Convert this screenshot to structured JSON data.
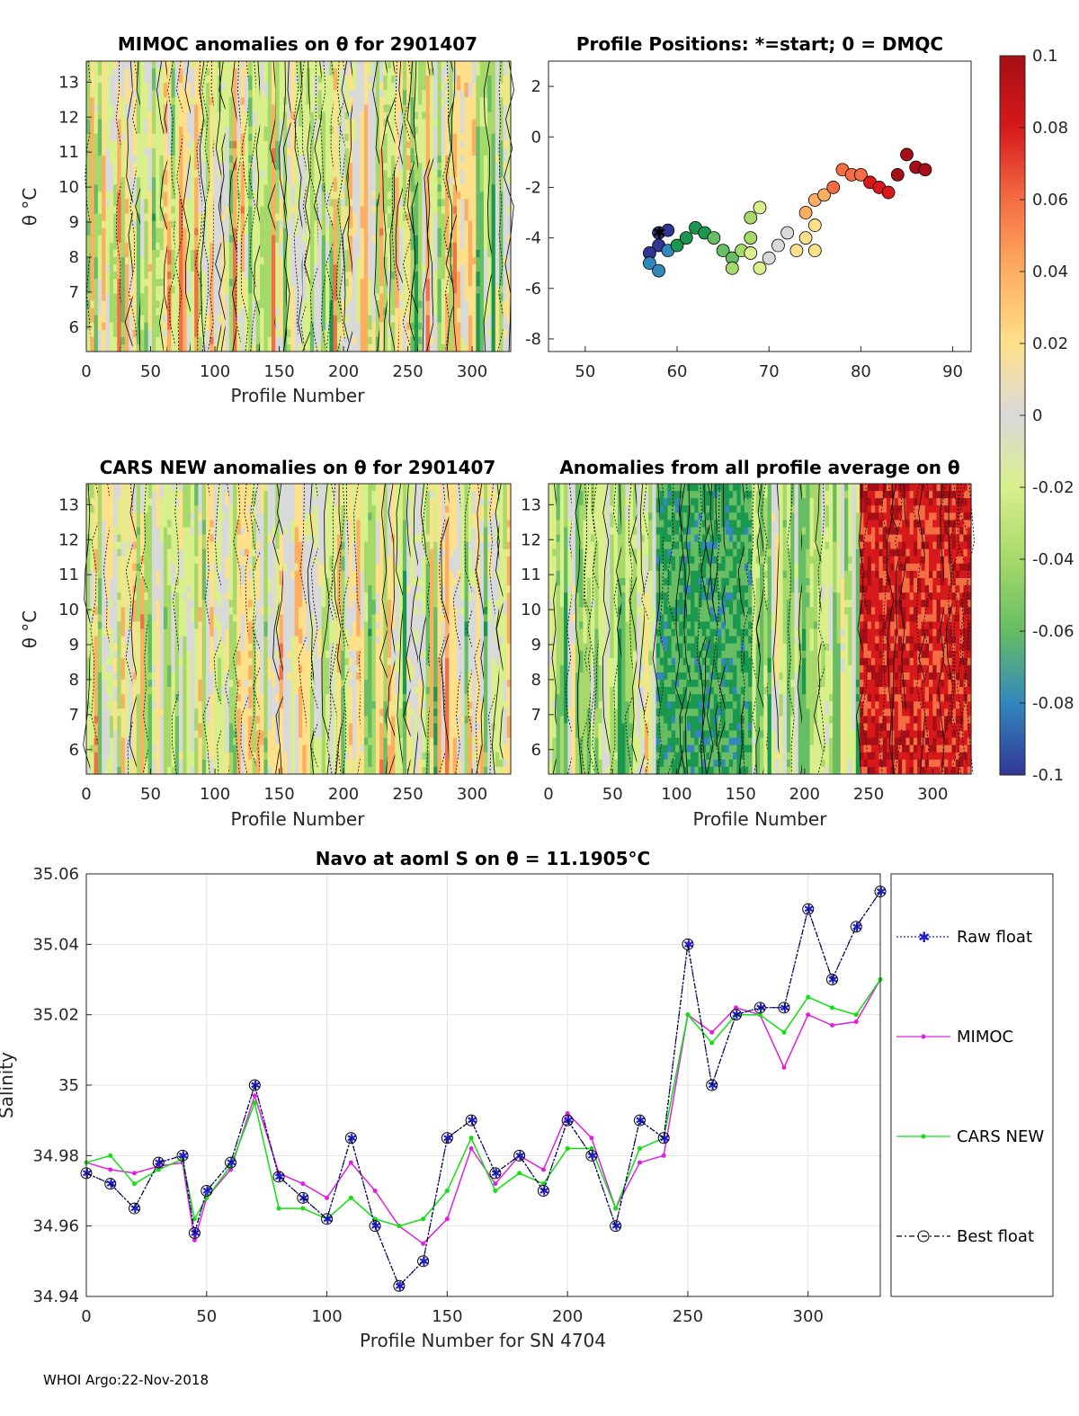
{
  "footer": "WHOI Argo:22-Nov-2018",
  "colorbar": {
    "labels": [
      "0.1",
      "0.08",
      "0.06",
      "0.04",
      "0.02",
      "0",
      "-0.02",
      "-0.04",
      "-0.06",
      "-0.08",
      "-0.1"
    ],
    "colors": [
      "#a50f15",
      "#d7191c",
      "#f46d43",
      "#fdae61",
      "#fee08b",
      "#d9d9d9",
      "#d9ef8b",
      "#a6d96a",
      "#66bd63",
      "#1a9850",
      "#3288bd",
      "#313695"
    ]
  },
  "chart_data": [
    {
      "type": "heatmap",
      "title": "MIMOC anomalies on θ  for 2901407",
      "xlabel": "Profile Number",
      "ylabel": "θ °C",
      "xticks": [
        "0",
        "50",
        "100",
        "150",
        "200",
        "250",
        "300"
      ],
      "yticks": [
        "6",
        "7",
        "8",
        "9",
        "10",
        "11",
        "12",
        "13"
      ],
      "xlim": [
        0,
        330
      ],
      "ylim": [
        5.3,
        13.6
      ]
    },
    {
      "type": "scatter",
      "title": "Profile Positions: *=start; 0 = DMQC",
      "xticks": [
        "50",
        "60",
        "70",
        "80",
        "90"
      ],
      "yticks": [
        "2",
        "0",
        "-2",
        "-4",
        "-6",
        "-8"
      ],
      "xlim": [
        46,
        92
      ],
      "ylim": [
        -8.5,
        3
      ],
      "track_points": [
        [
          58,
          -3.8
        ],
        [
          59,
          -3.7
        ],
        [
          58,
          -4.3
        ],
        [
          57,
          -4.6
        ],
        [
          57,
          -5
        ],
        [
          58,
          -5.3
        ],
        [
          59,
          -4.5
        ],
        [
          60,
          -4.3
        ],
        [
          61,
          -4
        ],
        [
          62,
          -3.6
        ],
        [
          63,
          -3.8
        ],
        [
          64,
          -4
        ],
        [
          65,
          -4.5
        ],
        [
          66,
          -4.8
        ],
        [
          66,
          -5.2
        ],
        [
          67,
          -4.5
        ],
        [
          68,
          -4
        ],
        [
          68,
          -3.2
        ],
        [
          69,
          -2.8
        ],
        [
          68,
          -4.6
        ],
        [
          69,
          -5.2
        ],
        [
          70,
          -4.8
        ],
        [
          71,
          -4.3
        ],
        [
          72,
          -3.8
        ],
        [
          73,
          -4.5
        ],
        [
          74,
          -4
        ],
        [
          75,
          -3.5
        ],
        [
          75,
          -4.5
        ],
        [
          74,
          -3
        ],
        [
          75,
          -2.5
        ],
        [
          76,
          -2.3
        ],
        [
          77,
          -2
        ],
        [
          78,
          -1.3
        ],
        [
          79,
          -1.5
        ],
        [
          80,
          -1.5
        ],
        [
          81,
          -1.8
        ],
        [
          82,
          -2
        ],
        [
          83,
          -2.2
        ],
        [
          84,
          -1.5
        ],
        [
          85,
          -0.7
        ],
        [
          86,
          -1.2
        ],
        [
          87,
          -1.3
        ]
      ]
    },
    {
      "type": "heatmap",
      "title": "CARS NEW anomalies on θ for 2901407",
      "xlabel": "Profile Number",
      "ylabel": "θ °C",
      "xticks": [
        "0",
        "50",
        "100",
        "150",
        "200",
        "250",
        "300"
      ],
      "yticks": [
        "6",
        "7",
        "8",
        "9",
        "10",
        "11",
        "12",
        "13"
      ],
      "xlim": [
        0,
        330
      ],
      "ylim": [
        5.3,
        13.6
      ]
    },
    {
      "type": "heatmap",
      "title": "Anomalies from all profile average on θ",
      "xlabel": "Profile Number",
      "xticks": [
        "0",
        "50",
        "100",
        "150",
        "200",
        "250",
        "300"
      ],
      "yticks": [
        "6",
        "7",
        "8",
        "9",
        "10",
        "11",
        "12",
        "13"
      ],
      "xlim": [
        0,
        330
      ],
      "ylim": [
        5.3,
        13.6
      ]
    },
    {
      "type": "line",
      "title": "Navo at aoml S on θ = 11.1905°C",
      "xlabel": "Profile Number for SN 4704",
      "ylabel": "Salinity",
      "xticks": [
        "0",
        "50",
        "100",
        "150",
        "200",
        "250",
        "300"
      ],
      "yticks": [
        "35.06",
        "35.04",
        "35.02",
        "35",
        "34.98",
        "34.96",
        "34.94"
      ],
      "xlim": [
        0,
        330
      ],
      "ylim": [
        34.94,
        35.06
      ],
      "x": [
        0,
        10,
        20,
        30,
        40,
        45,
        50,
        60,
        70,
        80,
        90,
        100,
        110,
        120,
        130,
        140,
        150,
        160,
        170,
        180,
        190,
        200,
        210,
        220,
        230,
        240,
        250,
        260,
        270,
        280,
        290,
        300,
        310,
        320,
        330
      ],
      "series": [
        {
          "name": "Raw float",
          "color": "#1f1fd0",
          "values": [
            34.975,
            34.972,
            34.965,
            34.978,
            34.98,
            34.958,
            34.97,
            34.978,
            35.0,
            34.974,
            34.968,
            34.962,
            34.985,
            34.96,
            34.943,
            34.95,
            34.985,
            34.99,
            34.975,
            34.98,
            34.97,
            34.99,
            34.98,
            34.96,
            34.99,
            34.985,
            35.04,
            35.0,
            35.02,
            35.022,
            35.022,
            35.05,
            35.03,
            35.045,
            35.055
          ]
        },
        {
          "name": "MIMOC",
          "color": "#e020e0",
          "values": [
            34.978,
            34.976,
            34.975,
            34.977,
            34.978,
            34.956,
            34.968,
            34.976,
            34.997,
            34.975,
            34.972,
            34.968,
            34.978,
            34.97,
            34.96,
            34.955,
            34.962,
            34.982,
            34.972,
            34.98,
            34.976,
            34.992,
            34.985,
            34.965,
            34.978,
            34.98,
            35.02,
            35.015,
            35.022,
            35.02,
            35.005,
            35.02,
            35.017,
            35.018,
            35.03
          ]
        },
        {
          "name": "CARS NEW",
          "color": "#10e010",
          "values": [
            34.978,
            34.98,
            34.972,
            34.976,
            34.979,
            34.962,
            34.968,
            34.977,
            34.995,
            34.965,
            34.965,
            34.962,
            34.968,
            34.962,
            34.96,
            34.962,
            34.97,
            34.985,
            34.97,
            34.975,
            34.972,
            34.982,
            34.982,
            34.965,
            34.982,
            34.985,
            35.02,
            35.012,
            35.02,
            35.02,
            35.015,
            35.025,
            35.022,
            35.02,
            35.03
          ]
        },
        {
          "name": "Best float",
          "color": "#000000",
          "values": [
            34.975,
            34.972,
            34.965,
            34.978,
            34.98,
            34.958,
            34.97,
            34.978,
            35.0,
            34.974,
            34.968,
            34.962,
            34.985,
            34.96,
            34.943,
            34.95,
            34.985,
            34.99,
            34.975,
            34.98,
            34.97,
            34.99,
            34.98,
            34.96,
            34.99,
            34.985,
            35.04,
            35.0,
            35.02,
            35.022,
            35.022,
            35.05,
            35.03,
            35.045,
            35.055
          ]
        }
      ]
    }
  ]
}
